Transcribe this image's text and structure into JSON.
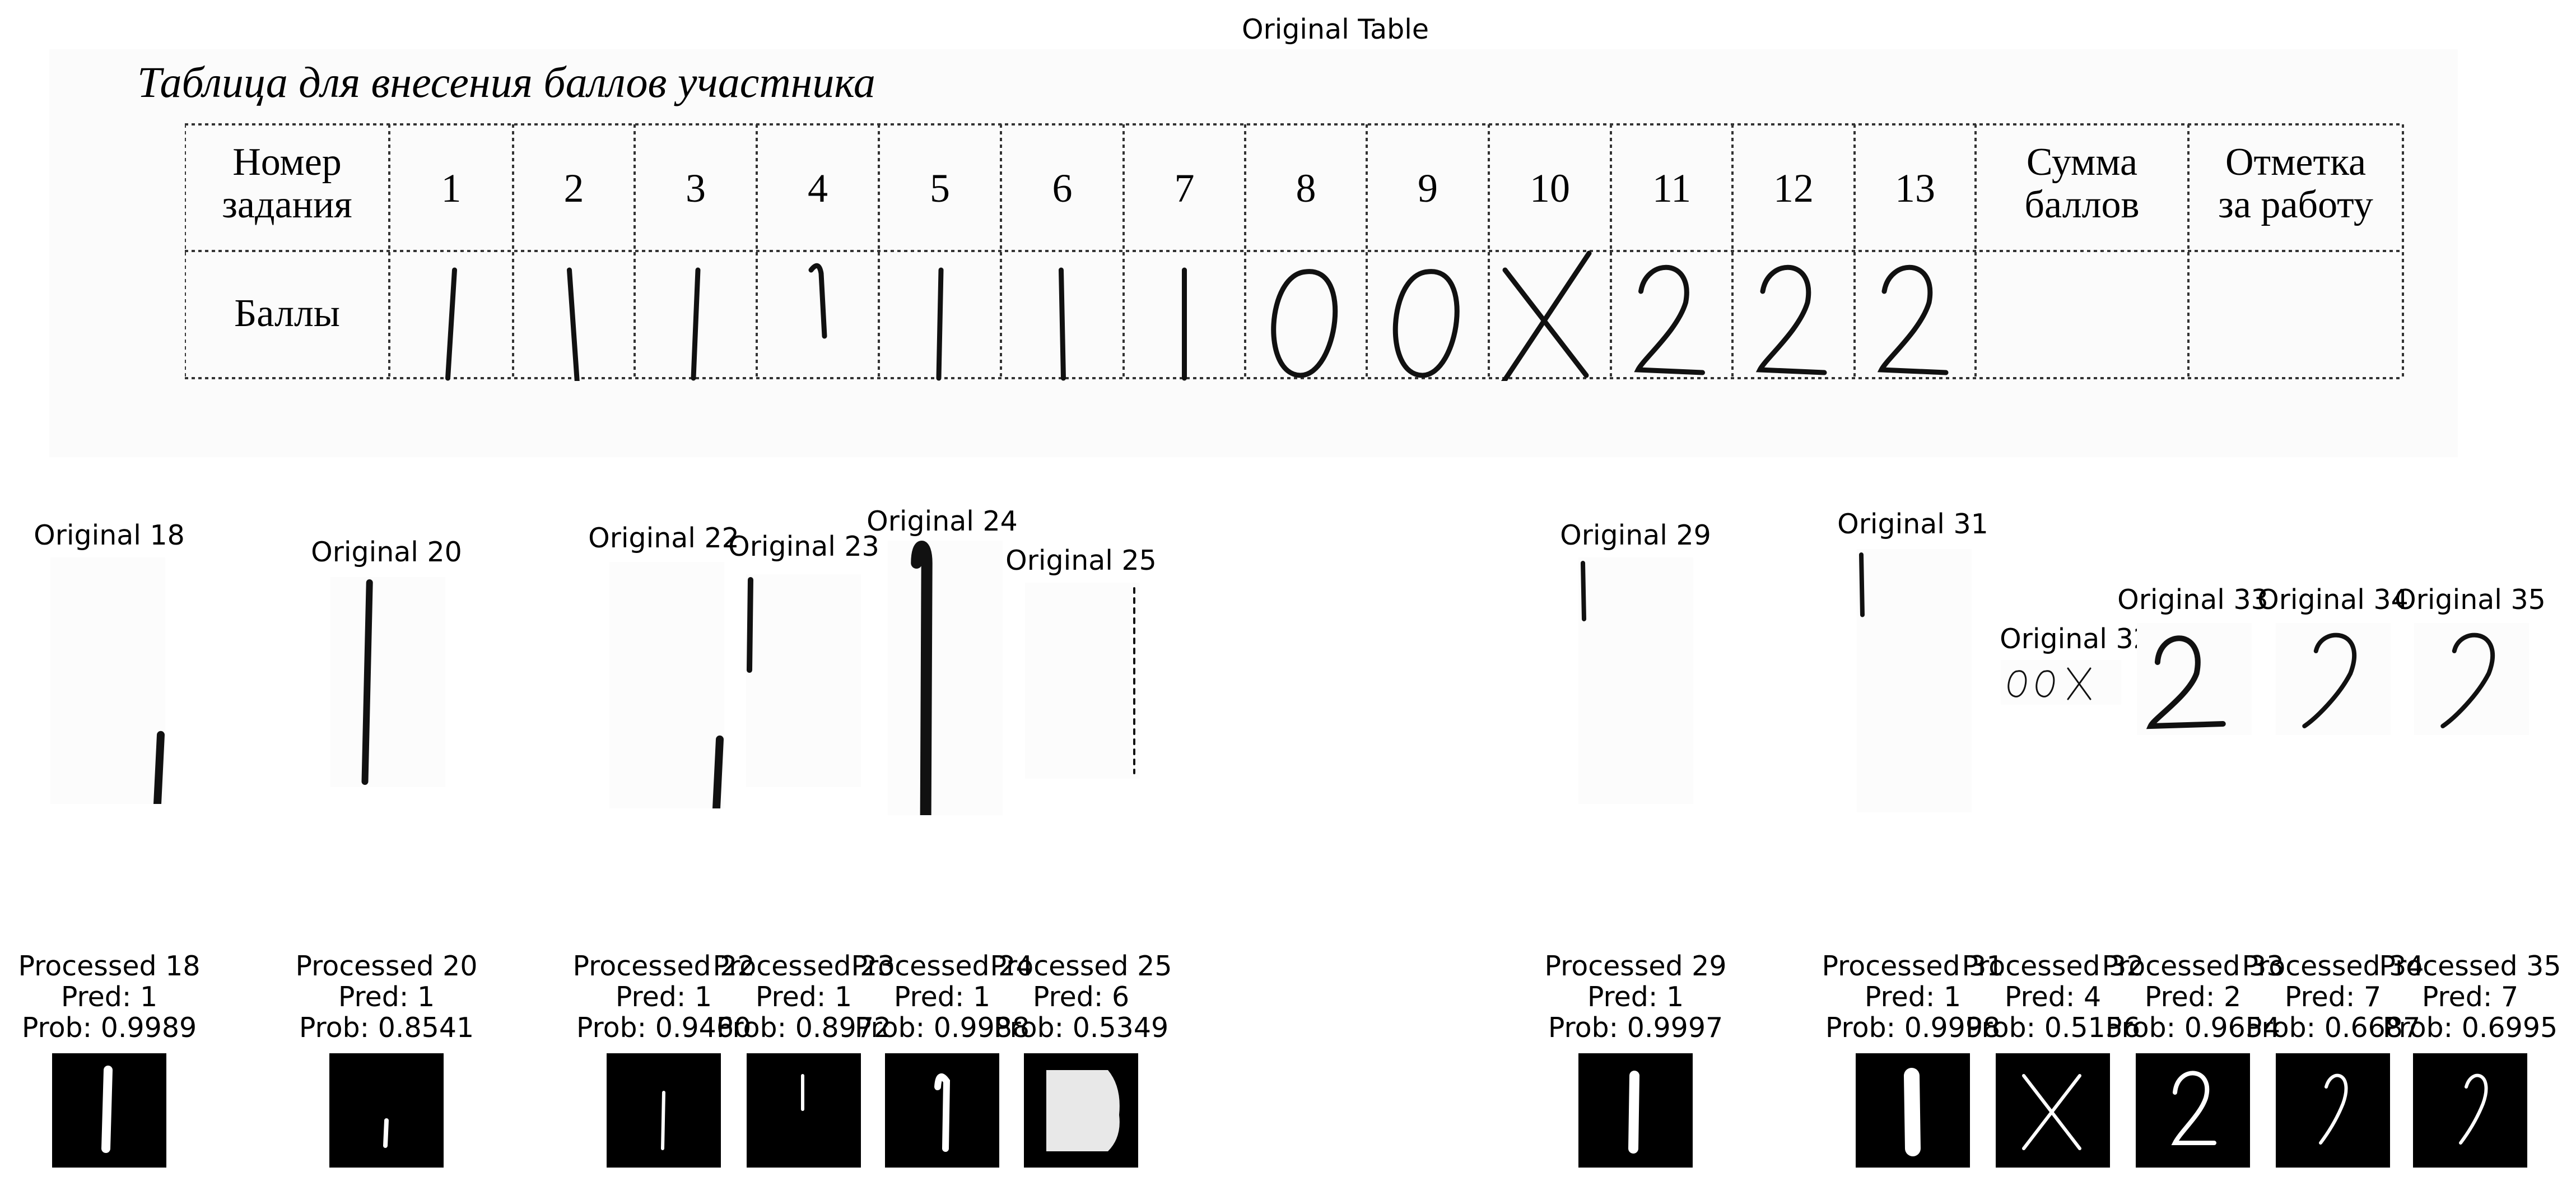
{
  "figure": {
    "title": "Original Table"
  },
  "scan": {
    "heading": "Таблица для внесения баллов участника",
    "row1_header": [
      "Номер",
      "задания"
    ],
    "task_numbers": [
      "1",
      "2",
      "3",
      "4",
      "5",
      "6",
      "7",
      "8",
      "9",
      "10",
      "11",
      "12",
      "13"
    ],
    "sum_header": [
      "Сумма",
      "баллов"
    ],
    "mark_header": [
      "Отметка",
      "за работу"
    ],
    "row2_header": "Баллы",
    "handwritten_scores": [
      "1",
      "1",
      "1",
      "1",
      "1",
      "1",
      "1",
      "0",
      "0",
      "X",
      "2",
      "2",
      "2"
    ]
  },
  "originals": [
    {
      "label": "Original 18"
    },
    {
      "label": "Original 20"
    },
    {
      "label": "Original 22"
    },
    {
      "label": "Original 23"
    },
    {
      "label": "Original 24"
    },
    {
      "label": "Original 25"
    },
    {
      "label": "Original 29"
    },
    {
      "label": "Original 31"
    },
    {
      "label": "Original 32"
    },
    {
      "label": "Original 33"
    },
    {
      "label": "Original 34"
    },
    {
      "label": "Original 35"
    }
  ],
  "processed": [
    {
      "label": "Processed 18",
      "pred": "Pred: 1",
      "prob": "Prob: 0.9989"
    },
    {
      "label": "Processed 20",
      "pred": "Pred: 1",
      "prob": "Prob: 0.8541"
    },
    {
      "label": "Processed 22",
      "pred": "Pred: 1",
      "prob": "Prob: 0.9460"
    },
    {
      "label": "Processed 23",
      "pred": "Pred: 1",
      "prob": "Prob: 0.8972"
    },
    {
      "label": "Processed 24",
      "pred": "Pred: 1",
      "prob": "Prob: 0.9988"
    },
    {
      "label": "Processed 25",
      "pred": "Pred: 6",
      "prob": "Prob: 0.5349"
    },
    {
      "label": "Processed 29",
      "pred": "Pred: 1",
      "prob": "Prob: 0.9997"
    },
    {
      "label": "Processed 31",
      "pred": "Pred: 1",
      "prob": "Prob: 0.9998"
    },
    {
      "label": "Processed 32",
      "pred": "Pred: 4",
      "prob": "Prob: 0.5156"
    },
    {
      "label": "Processed 33",
      "pred": "Pred: 2",
      "prob": "Prob: 0.9654"
    },
    {
      "label": "Processed 34",
      "pred": "Pred: 7",
      "prob": "Prob: 0.6687"
    },
    {
      "label": "Processed 35",
      "pred": "Pred: 7",
      "prob": "Prob: 0.6995"
    }
  ]
}
